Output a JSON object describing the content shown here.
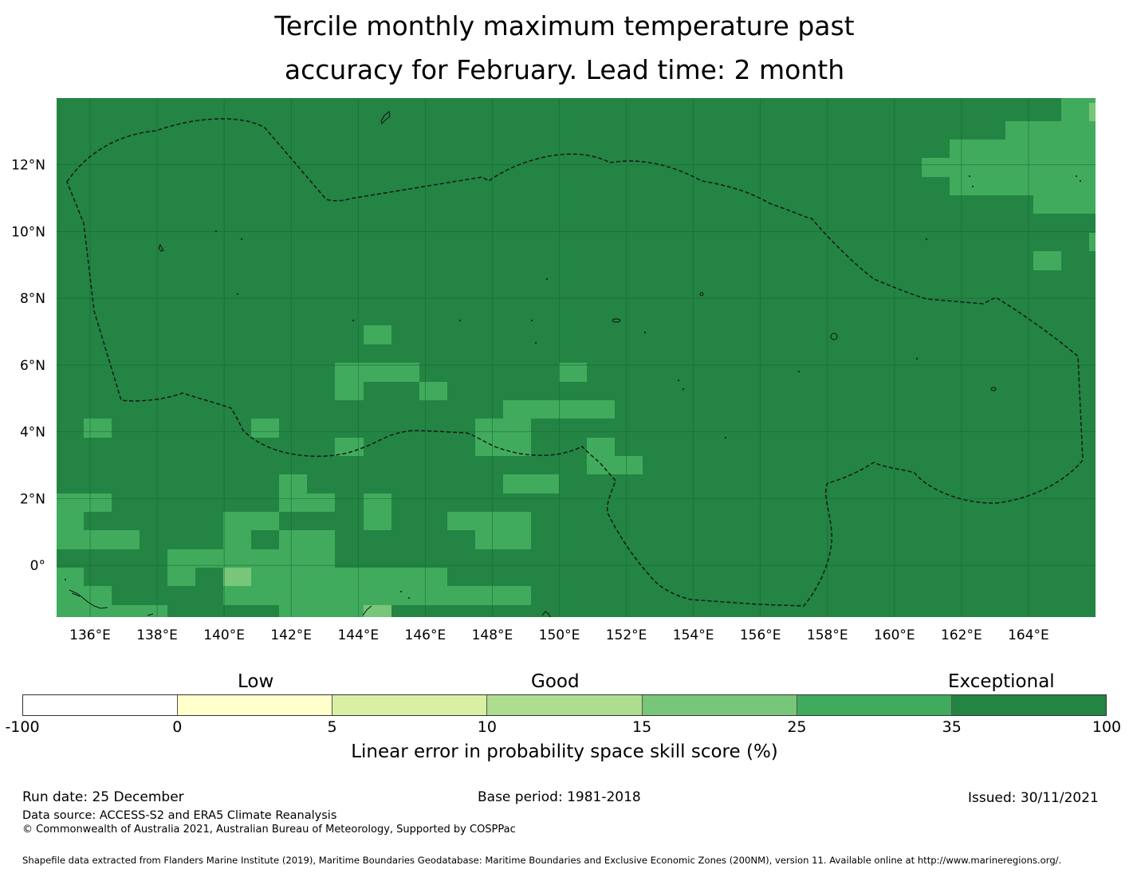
{
  "title": {
    "line1": "Tercile monthly maximum temperature past",
    "line2": "accuracy for February. Lead time: 2 month"
  },
  "map": {
    "lon_labels": [
      "136°E",
      "138°E",
      "140°E",
      "142°E",
      "144°E",
      "146°E",
      "148°E",
      "150°E",
      "152°E",
      "154°E",
      "156°E",
      "158°E",
      "160°E",
      "162°E",
      "164°E"
    ],
    "lat_labels": [
      "12°N",
      "10°N",
      "8°N",
      "6°N",
      "4°N",
      "2°N",
      "0°"
    ],
    "lon_values": [
      136,
      138,
      140,
      142,
      144,
      146,
      148,
      150,
      152,
      154,
      156,
      158,
      160,
      162,
      164
    ],
    "lat_values": [
      12,
      10,
      8,
      6,
      4,
      2,
      0
    ],
    "extent": {
      "lon_min": 135.0,
      "lon_max": 166.0,
      "lat_min": -1.55,
      "lat_max": 14.0
    },
    "background_class": "exceptional_35_100"
  },
  "legend": {
    "categories": [
      "Low",
      "Good",
      "Exceptional"
    ],
    "ticks": [
      "-100",
      "0",
      "5",
      "10",
      "15",
      "25",
      "35",
      "100"
    ],
    "colors": [
      "#ffffff",
      "#ffffcc",
      "#d9f0a3",
      "#addd8e",
      "#78c679",
      "#41ab5d",
      "#238443"
    ],
    "label": "Linear error in probability space skill score (%)"
  },
  "footer": {
    "run_date": "Run date: 25 December",
    "base_period": "Base period: 1981-2018",
    "issued": "Issued: 30/11/2021",
    "data_source": "Data source: ACCESS-S2 and ERA5 Climate Reanalysis",
    "copyright": "© Commonwealth of Australia 2021, Australian Bureau of Meteorology, Supported by COSPPac",
    "shapefile": "Shapefile data extracted from Flanders Marine Institute (2019), Maritime Boundaries Geodatabase: Maritime Boundaries and Exclusive Economic Zones (200NM), version 11. Available online at http://www.marineregions.org/."
  }
}
